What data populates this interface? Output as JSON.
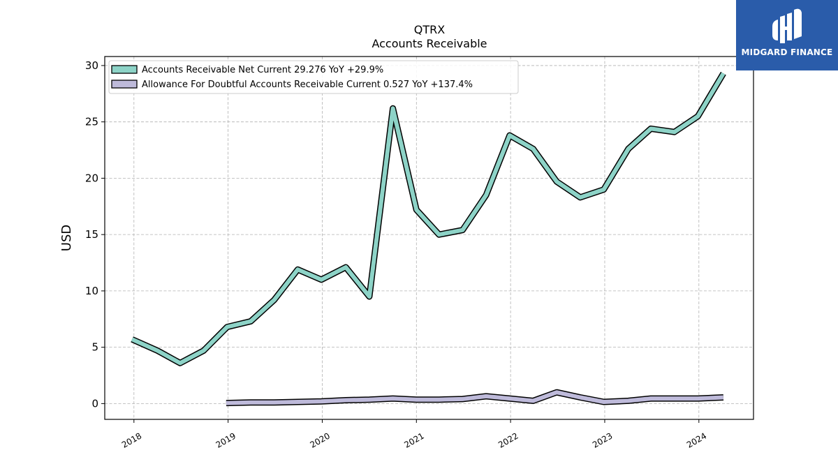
{
  "logo": {
    "text": "MIDGARD FINANCE",
    "background": "#2a5caa",
    "icon": "midgard-logo-mark"
  },
  "chart_data": {
    "type": "line",
    "title": "QTRX",
    "subtitle": "Accounts Receivable",
    "xlabel": "",
    "ylabel": "USD",
    "ylim": [
      -1.4,
      30.8
    ],
    "xlim": [
      2017.69,
      2024.58
    ],
    "yticks": [
      0,
      5,
      10,
      15,
      20,
      25,
      30
    ],
    "xticks": [
      2018,
      2019,
      2020,
      2021,
      2022,
      2023,
      2024
    ],
    "xtick_labels": [
      "2018",
      "2019",
      "2020",
      "2021",
      "2022",
      "2023",
      "2024"
    ],
    "grid": true,
    "legend_position": "top-left",
    "series": [
      {
        "name": "Accounts Receivable Net Current",
        "legend_label": "Accounts Receivable Net Current  29.276 YoY +29.9%",
        "color": "#8dd3c7",
        "points": [
          [
            2017.98,
            5.7
          ],
          [
            2018.25,
            4.7
          ],
          [
            2018.49,
            3.6
          ],
          [
            2018.74,
            4.7
          ],
          [
            2018.99,
            6.8
          ],
          [
            2019.24,
            7.3
          ],
          [
            2019.49,
            9.2
          ],
          [
            2019.74,
            11.9
          ],
          [
            2019.99,
            11.0
          ],
          [
            2020.25,
            12.1
          ],
          [
            2020.5,
            9.5
          ],
          [
            2020.75,
            26.2
          ],
          [
            2021.0,
            17.2
          ],
          [
            2021.24,
            15.0
          ],
          [
            2021.49,
            15.4
          ],
          [
            2021.74,
            18.5
          ],
          [
            2021.99,
            23.8
          ],
          [
            2022.24,
            22.6
          ],
          [
            2022.49,
            19.7
          ],
          [
            2022.74,
            18.3
          ],
          [
            2022.99,
            19.0
          ],
          [
            2023.25,
            22.6
          ],
          [
            2023.49,
            24.4
          ],
          [
            2023.74,
            24.1
          ],
          [
            2023.99,
            25.5
          ],
          [
            2024.26,
            29.3
          ]
        ]
      },
      {
        "name": "Allowance For Doubtful Accounts Receivable Current",
        "legend_label": "Allowance For Doubtful Accounts Receivable Current  0.527 YoY +137.4%",
        "color": "#bebada",
        "points": [
          [
            2018.98,
            0.05
          ],
          [
            2019.24,
            0.1
          ],
          [
            2019.49,
            0.1
          ],
          [
            2019.74,
            0.15
          ],
          [
            2019.99,
            0.2
          ],
          [
            2020.25,
            0.3
          ],
          [
            2020.5,
            0.35
          ],
          [
            2020.75,
            0.45
          ],
          [
            2021.0,
            0.35
          ],
          [
            2021.24,
            0.35
          ],
          [
            2021.49,
            0.4
          ],
          [
            2021.74,
            0.65
          ],
          [
            2021.99,
            0.45
          ],
          [
            2022.24,
            0.25
          ],
          [
            2022.49,
            1.0
          ],
          [
            2022.74,
            0.55
          ],
          [
            2022.99,
            0.15
          ],
          [
            2023.25,
            0.25
          ],
          [
            2023.49,
            0.45
          ],
          [
            2023.74,
            0.45
          ],
          [
            2023.99,
            0.45
          ],
          [
            2024.26,
            0.55
          ]
        ]
      }
    ]
  }
}
